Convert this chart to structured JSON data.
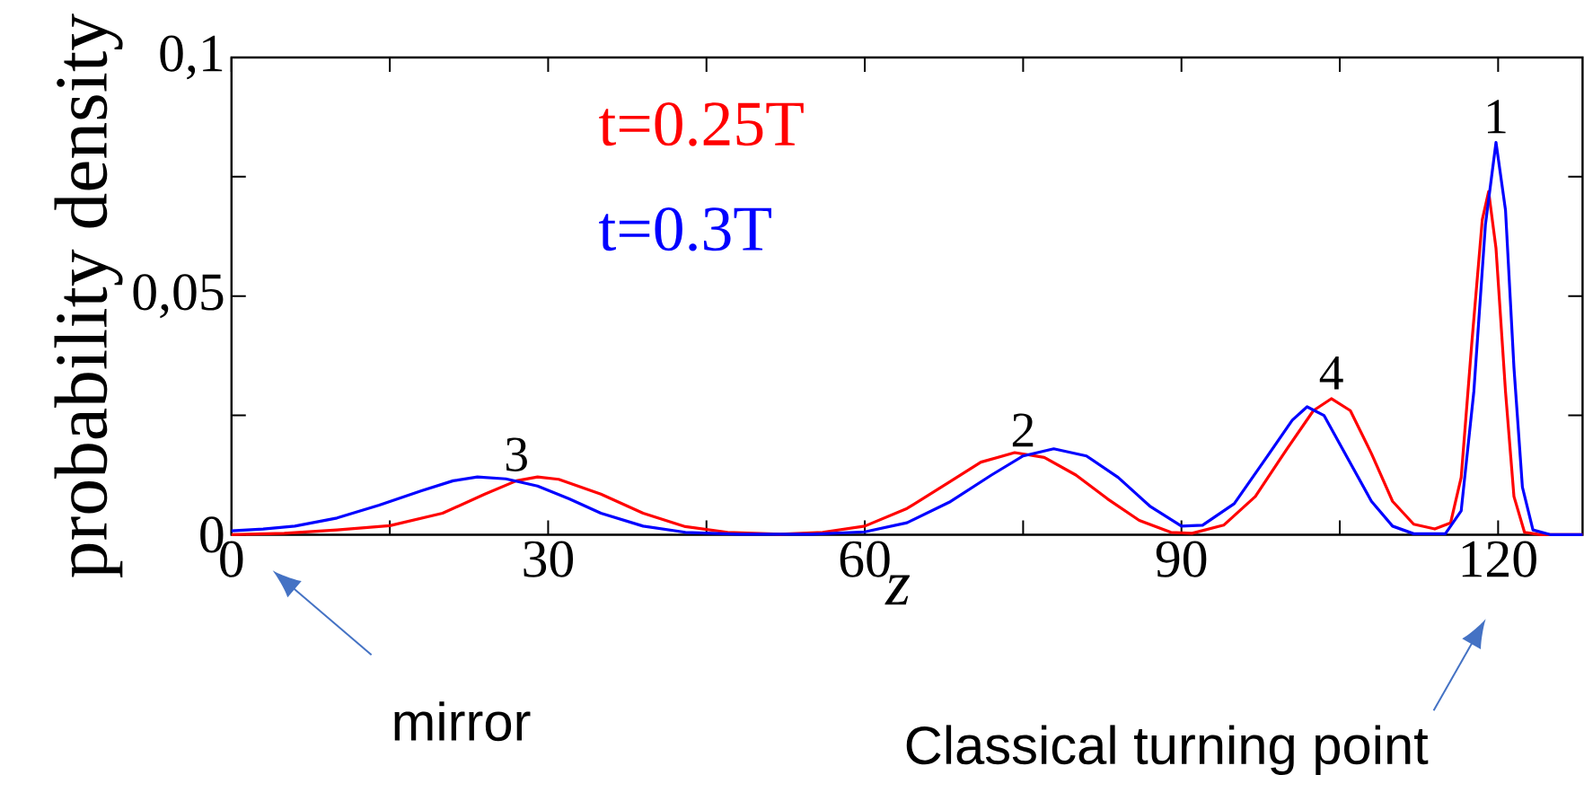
{
  "chart_data": {
    "type": "line",
    "xlabel": "z",
    "ylabel": "probability density",
    "xlim": [
      0,
      128
    ],
    "ylim": [
      0,
      0.1
    ],
    "xticks": [
      0,
      {
        "value": 15,
        "label": null
      },
      30,
      {
        "value": 45,
        "label": null
      },
      60,
      {
        "value": 75,
        "label": null
      },
      90,
      {
        "value": 105,
        "label": null
      },
      120
    ],
    "yticks": [
      0,
      {
        "value": 0.025,
        "label": null
      },
      {
        "value": 0.05,
        "label": "0,05"
      },
      {
        "value": 0.075,
        "label": null
      },
      {
        "value": 0.1,
        "label": "0,1"
      }
    ],
    "legend": "top left",
    "series": [
      {
        "name": "t=0.25T",
        "color": "#ff0000",
        "x": [
          0,
          5,
          10,
          15,
          20,
          24,
          27,
          29,
          31,
          35,
          39,
          43,
          47,
          52,
          56,
          60,
          64,
          68,
          71,
          74.2,
          77,
          80,
          83,
          86,
          89,
          91,
          94,
          97,
          100,
          102.5,
          104.2,
          106,
          108,
          110,
          112,
          114,
          115.5,
          116.5,
          117.5,
          118.5,
          119.1,
          119.8,
          120.7,
          121.5,
          122.5,
          124,
          128
        ],
        "values": [
          0,
          0.0003,
          0.001,
          0.0019,
          0.0045,
          0.0085,
          0.0113,
          0.0121,
          0.0116,
          0.0085,
          0.0045,
          0.0017,
          0.0005,
          0.0001,
          0.0005,
          0.0018,
          0.0055,
          0.011,
          0.0152,
          0.0172,
          0.0162,
          0.0125,
          0.0075,
          0.003,
          0.0005,
          0.0003,
          0.002,
          0.008,
          0.018,
          0.026,
          0.0285,
          0.026,
          0.017,
          0.007,
          0.0022,
          0.0012,
          0.0025,
          0.012,
          0.04,
          0.066,
          0.0719,
          0.06,
          0.03,
          0.008,
          0.0005,
          0,
          0
        ]
      },
      {
        "name": "t=0.3T",
        "color": "#0000ff",
        "x": [
          0,
          3,
          6,
          10,
          14,
          18,
          21,
          23.3,
          26,
          29,
          32,
          35,
          39,
          43,
          48,
          55,
          60,
          64,
          68,
          72,
          75,
          77.9,
          81,
          84,
          87,
          90,
          92,
          95,
          98,
          100.5,
          101.9,
          103.5,
          105.5,
          108,
          110,
          112,
          115,
          116.5,
          117.7,
          118.8,
          119.8,
          120.7,
          121.5,
          122.3,
          123.3,
          125,
          128
        ],
        "values": [
          0.0008,
          0.0012,
          0.0018,
          0.0035,
          0.0062,
          0.0092,
          0.0113,
          0.0121,
          0.0117,
          0.0102,
          0.0075,
          0.0045,
          0.0018,
          0.0005,
          0.0001,
          0.0001,
          0.0006,
          0.0025,
          0.0068,
          0.0125,
          0.0165,
          0.018,
          0.0165,
          0.012,
          0.006,
          0.0018,
          0.002,
          0.0065,
          0.016,
          0.024,
          0.0268,
          0.025,
          0.017,
          0.007,
          0.0018,
          0.0002,
          0.0002,
          0.005,
          0.03,
          0.065,
          0.0822,
          0.068,
          0.035,
          0.01,
          0.001,
          0,
          0
        ]
      }
    ],
    "annotations": [
      {
        "text": "3",
        "x": 27,
        "y": 0.0113
      },
      {
        "text": "2",
        "x": 75,
        "y": 0.0165
      },
      {
        "text": "4",
        "x": 104.2,
        "y": 0.0285
      },
      {
        "text": "1",
        "x": 119.8,
        "y": 0.0822
      },
      "mirror",
      "Classical turning point"
    ]
  }
}
